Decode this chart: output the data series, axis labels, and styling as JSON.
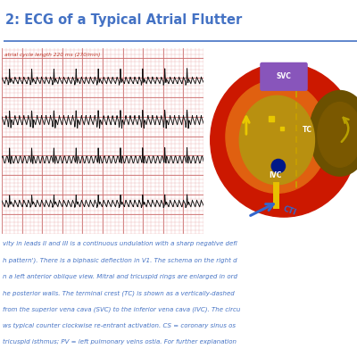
{
  "title": "2: ECG of a Typical Atrial Flutter",
  "title_color": "#4472C4",
  "title_fontsize": 10.5,
  "separator_color": "#4472C4",
  "ecg_label": "atrial cycle length 220 ms (270/min)",
  "ecg_label_color": "#C0392B",
  "ecg_bg": "#F5D5D5",
  "ecg_grid_minor": "#E8A8A8",
  "ecg_grid_major": "#CC7070",
  "ecg_line_color": "#111111",
  "body_text_color": "#4472C4",
  "body_text_lines": [
    "vity in leads II and III is a continuous undulation with a sharp negative defl",
    "h pattern'). There is a biphasic deflection in V1. The schema on the right d",
    "n a left anterior oblique view. Mitral and tricuspid rings are enlarged in ord",
    "he posterior walls. The terminal crest (TC) is shown as a vertically-dashed",
    "from the superior vena cava (SVC) to the inferior vena cava (IVC). The circu",
    "ws typical counter clockwise re-entrant activation. CS = coronary sinus os",
    "tricuspid isthmus; PV = left pulmonary veins ostia. For further explanation"
  ],
  "body_text_fontsize": 5.0,
  "heart_red": "#CC1800",
  "heart_orange": "#E06010",
  "heart_gold": "#B89010",
  "heart_darkgold": "#7A5800",
  "heart_darkolive": "#6B5000",
  "svc_purple": "#8855BB",
  "tc_gold": "#C8A000",
  "cti_blue": "#3366CC",
  "cs_navy": "#001888",
  "arrow_yellow": "#E8C800",
  "ivc_yellow": "#E8C000"
}
